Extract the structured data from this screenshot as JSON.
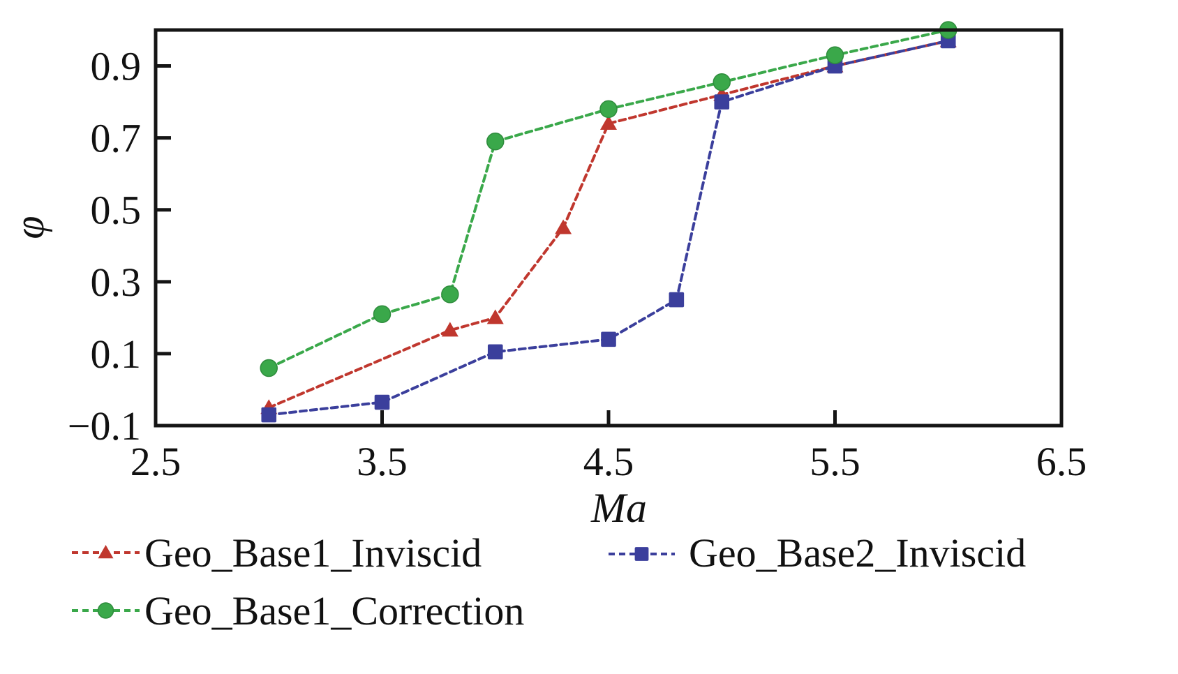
{
  "chart_data": {
    "type": "line",
    "title": "",
    "xlabel": "Ma",
    "ylabel": "φ",
    "xlim": [
      2.5,
      6.5
    ],
    "ylim": [
      -0.1,
      1.0
    ],
    "xticks": [
      2.5,
      3.5,
      4.5,
      5.5,
      6.5
    ],
    "xtick_labels": [
      "2.5",
      "3.5",
      "4.5",
      "5.5",
      "6.5"
    ],
    "yticks": [
      -0.1,
      0.1,
      0.3,
      0.5,
      0.7,
      0.9
    ],
    "ytick_labels": [
      "−0.1",
      "0.1",
      "0.3",
      "0.5",
      "0.7",
      "0.9"
    ],
    "grid": false,
    "legend_position": "bottom",
    "series": [
      {
        "name": "Geo_Base1_Inviscid",
        "color": "#c0372e",
        "marker": "triangle",
        "line_style": "dashed",
        "x": [
          3.0,
          3.8,
          4.0,
          4.3,
          4.5,
          5.0,
          5.5,
          6.0
        ],
        "y": [
          -0.05,
          0.165,
          0.2,
          0.45,
          0.74,
          0.82,
          0.9,
          0.97
        ]
      },
      {
        "name": "Geo_Base2_Inviscid",
        "color": "#3b3f9c",
        "marker": "square",
        "line_style": "dashed",
        "x": [
          3.0,
          3.5,
          4.0,
          4.5,
          4.8,
          5.0,
          5.5,
          6.0
        ],
        "y": [
          -0.07,
          -0.035,
          0.105,
          0.14,
          0.25,
          0.8,
          0.9,
          0.97
        ]
      },
      {
        "name": "Geo_Base1_Correction",
        "color": "#3aa84a",
        "marker": "circle",
        "line_style": "dashed",
        "x": [
          3.0,
          3.5,
          3.8,
          4.0,
          4.5,
          5.0,
          5.5,
          6.0
        ],
        "y": [
          0.06,
          0.21,
          0.265,
          0.69,
          0.78,
          0.855,
          0.93,
          1.0
        ]
      }
    ]
  }
}
